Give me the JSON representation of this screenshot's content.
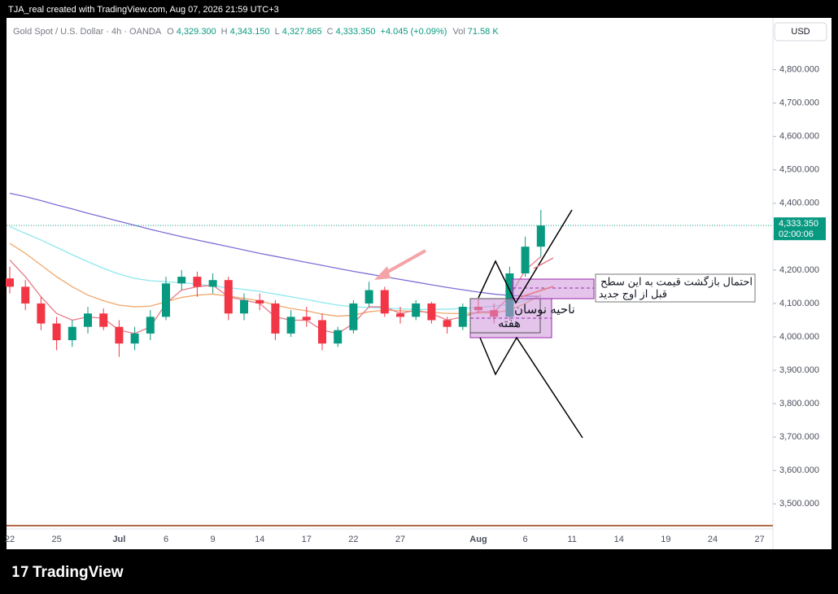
{
  "header": {
    "credit": "TJA_real created with TradingView.com, Aug 07, 2026 21:59 UTC+3",
    "symbol": "Gold Spot / U.S. Dollar · 4h · OANDA",
    "ohlc": [
      {
        "label": "O",
        "value": "4,329.300"
      },
      {
        "label": "H",
        "value": "4,343.150"
      },
      {
        "label": "L",
        "value": "4,327.865"
      },
      {
        "label": "C",
        "value": "4,333.350"
      }
    ],
    "change": "+4.045 (+0.09%)",
    "volume_label": "Vol",
    "volume": "71.58 K",
    "currency": "USD"
  },
  "chart_data": {
    "type": "candlestick",
    "categories": [
      "22",
      null,
      null,
      "25",
      null,
      null,
      null,
      "Jul",
      null,
      null,
      "6",
      null,
      null,
      "9",
      null,
      null,
      "14",
      null,
      null,
      "17",
      null,
      null,
      "22",
      null,
      null,
      "27",
      null,
      null,
      null,
      null,
      "Aug",
      null,
      null,
      "6",
      null,
      null,
      "11",
      null,
      null,
      "14",
      null,
      null,
      "19",
      null,
      null,
      "24",
      null,
      null,
      "27"
    ],
    "open": [
      4175,
      4150,
      4100,
      4040,
      3990,
      4030,
      4070,
      4030,
      3980,
      4010,
      4060,
      4160,
      4180,
      4150,
      4170,
      4070,
      4110,
      4100,
      4010,
      4060,
      4050,
      3980,
      4020,
      4100,
      4140,
      4070,
      4060,
      4100,
      4050,
      4030,
      4090,
      4080,
      4060,
      4190,
      4270,
      null,
      null,
      null,
      null,
      null,
      null,
      null,
      null,
      null,
      null,
      null,
      null,
      null,
      null
    ],
    "high": [
      4210,
      4170,
      4120,
      4060,
      4050,
      4090,
      4085,
      4050,
      4030,
      4080,
      4180,
      4200,
      4195,
      4190,
      4180,
      4130,
      4130,
      4110,
      4080,
      4090,
      4070,
      4030,
      4110,
      4165,
      4150,
      4090,
      4110,
      4105,
      4060,
      4100,
      4115,
      4100,
      4210,
      4300,
      4380,
      null,
      null,
      null,
      null,
      null,
      null,
      null,
      null,
      null,
      null,
      null,
      null,
      null,
      null
    ],
    "low": [
      4130,
      4080,
      4020,
      3960,
      3970,
      4010,
      4020,
      3940,
      3960,
      3990,
      4050,
      4140,
      4120,
      4130,
      4050,
      4050,
      4080,
      3990,
      4000,
      4030,
      3960,
      3970,
      4010,
      4090,
      4060,
      4040,
      4050,
      4040,
      4010,
      4020,
      4070,
      4040,
      4050,
      4180,
      4240,
      null,
      null,
      null,
      null,
      null,
      null,
      null,
      null,
      null,
      null,
      null,
      null,
      null,
      null
    ],
    "close": [
      4150,
      4100,
      4040,
      3990,
      4030,
      4070,
      4030,
      3980,
      4010,
      4060,
      4160,
      4180,
      4150,
      4170,
      4070,
      4110,
      4100,
      4010,
      4060,
      4050,
      3980,
      4020,
      4100,
      4140,
      4070,
      4060,
      4100,
      4050,
      4030,
      4090,
      4080,
      4060,
      4190,
      4270,
      4333.35,
      null,
      null,
      null,
      null,
      null,
      null,
      null,
      null,
      null,
      null,
      null,
      null,
      null,
      null
    ],
    "up_color": "#089981",
    "down_color": "#f23645",
    "overlays": [
      {
        "color": "#7e6fd6",
        "values": [
          4430,
          4420,
          4408,
          4395,
          4383,
          4370,
          4358,
          4346,
          4334,
          4322,
          4311,
          4300,
          4290,
          4280,
          4270,
          4260,
          4250,
          4241,
          4232,
          4223,
          4214,
          4205,
          4196,
          4188,
          4180,
          4172,
          4164,
          4156,
          4148,
          4141,
          4134,
          4128,
          4124,
          4122,
          4121,
          null,
          null,
          null,
          null,
          null,
          null,
          null,
          null,
          null,
          null,
          null,
          null,
          null,
          null
        ]
      },
      {
        "color": "#8ee8ee",
        "values": [
          4330,
          4310,
          4290,
          4268,
          4246,
          4225,
          4205,
          4188,
          4175,
          4168,
          4165,
          4162,
          4158,
          4152,
          4147,
          4142,
          4136,
          4128,
          4120,
          4112,
          4103,
          4095,
          4090,
          4088,
          4086,
          4084,
          4082,
          4082,
          4083,
          4085,
          4088,
          4092,
          4098,
          4108,
          4120,
          null,
          null,
          null,
          null,
          null,
          null,
          null,
          null,
          null,
          null,
          null,
          null,
          null,
          null
        ]
      },
      {
        "color": "#f0a76b",
        "values": [
          4280,
          4250,
          4215,
          4180,
          4150,
          4125,
          4108,
          4095,
          4090,
          4092,
          4105,
          4118,
          4125,
          4128,
          4122,
          4115,
          4108,
          4095,
          4085,
          4078,
          4068,
          4062,
          4065,
          4075,
          4080,
          4078,
          4076,
          4074,
          4070,
          4070,
          4072,
          4072,
          4080,
          4100,
          4125,
          null,
          null,
          null,
          null,
          null,
          null,
          null,
          null,
          null,
          null,
          null,
          null,
          null,
          null
        ]
      },
      {
        "color": "#e57a86",
        "values": [
          4230,
          4180,
          4120,
          4070,
          4050,
          4060,
          4055,
          4020,
          4010,
          4030,
          4100,
          4140,
          4150,
          4155,
          4120,
          4110,
          4100,
          4060,
          4050,
          4050,
          4020,
          4010,
          4040,
          4090,
          4090,
          4070,
          4080,
          4070,
          4050,
          4060,
          4075,
          4075,
          4120,
          4200,
          4240,
          null,
          null,
          null,
          null,
          null,
          null,
          null,
          null,
          null,
          null,
          null,
          null,
          null,
          null
        ]
      }
    ],
    "ylim": [
      3425,
      4955
    ],
    "yticks": [
      {
        "value": 3500,
        "label": "3,500.000"
      },
      {
        "value": 3600,
        "label": "3,600.000"
      },
      {
        "value": 3700,
        "label": "3,700.000"
      },
      {
        "value": 3800,
        "label": "3,800.000"
      },
      {
        "value": 3900,
        "label": "3,900.000"
      },
      {
        "value": 4000,
        "label": "4,000.000"
      },
      {
        "value": 4100,
        "label": "4,100.000"
      },
      {
        "value": 4200,
        "label": "4,200.000"
      },
      {
        "value": 4300,
        "label": "4,300.000"
      },
      {
        "value": 4400,
        "label": "4,400.000"
      },
      {
        "value": 4500,
        "label": "4,500.000"
      },
      {
        "value": 4600,
        "label": "4,600.000"
      },
      {
        "value": 4700,
        "label": "4,700.000"
      },
      {
        "value": 4800,
        "label": "4,800.000"
      }
    ],
    "last_price": {
      "value": 4333.35,
      "label": "4,333.350",
      "countdown": "02:00:06",
      "color": "#089981"
    },
    "annotations": [
      [
        "ناحیه نوسان",
        "هفته"
      ],
      [
        "احتمال بازگشت قیمت به این سطح",
        "قبل از اوج جدید"
      ]
    ]
  },
  "footer": {
    "brand": "TradingView"
  }
}
